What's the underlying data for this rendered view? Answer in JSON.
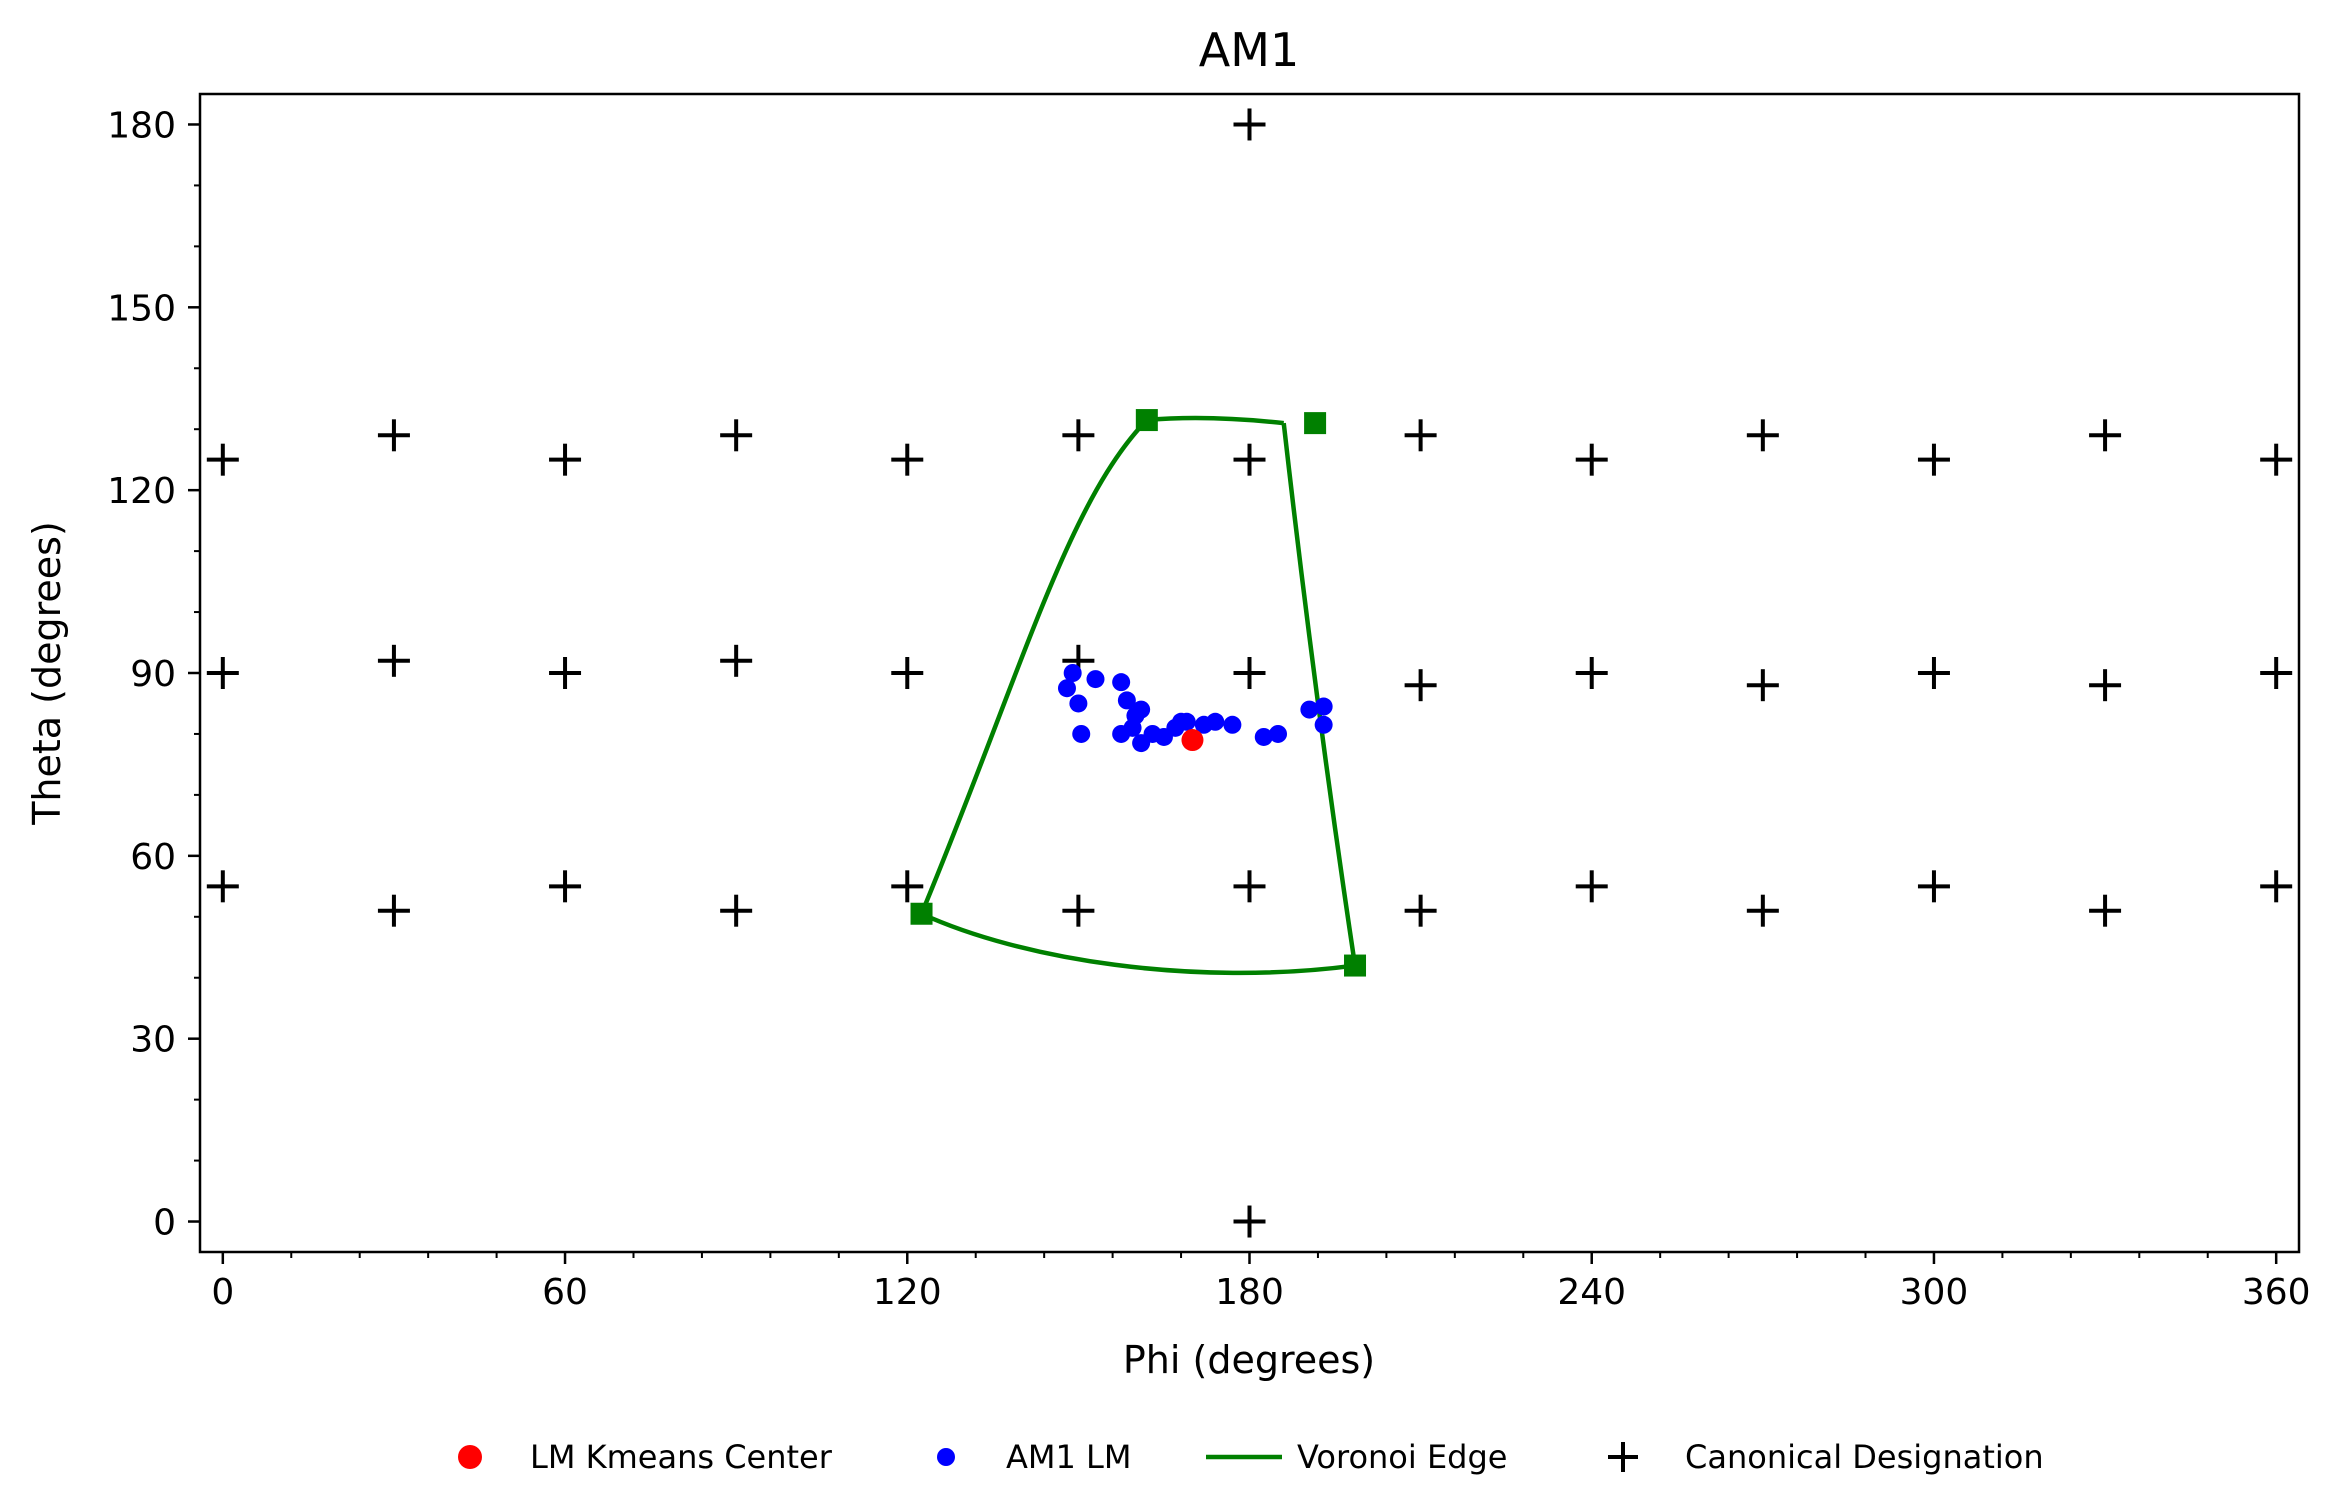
{
  "chart_data": {
    "type": "scatter",
    "title": "AM1",
    "xlabel": "Phi (degrees)",
    "ylabel": "Theta (degrees)",
    "xlim": [
      -4,
      364
    ],
    "ylim": [
      185,
      -5
    ],
    "y_inverted": true,
    "xticks": [
      0,
      60,
      120,
      180,
      240,
      300,
      360
    ],
    "yticks": [
      0,
      30,
      60,
      90,
      120,
      150,
      180
    ],
    "x_minor_step": 12,
    "y_minor_step": 10,
    "grid": false,
    "legend_position": "bottom-center",
    "legend": [
      {
        "label": "LM Kmeans Center",
        "marker": "circle",
        "color": "#ff0000"
      },
      {
        "label": "AM1 LM",
        "marker": "circle",
        "color": "#0000ff"
      },
      {
        "label": "Voronoi Edge",
        "marker": "line",
        "color": "#008000"
      },
      {
        "label": "Canonical Designation",
        "marker": "plus",
        "color": "#000000"
      }
    ],
    "series": [
      {
        "name": "Canonical Designation",
        "marker": "plus",
        "color": "#000000",
        "points": [
          [
            180,
            0
          ],
          [
            0,
            55
          ],
          [
            30,
            51
          ],
          [
            60,
            55
          ],
          [
            90,
            51
          ],
          [
            120,
            55
          ],
          [
            150,
            51
          ],
          [
            180,
            55
          ],
          [
            210,
            51
          ],
          [
            240,
            55
          ],
          [
            270,
            51
          ],
          [
            300,
            55
          ],
          [
            330,
            51
          ],
          [
            360,
            55
          ],
          [
            0,
            90
          ],
          [
            30,
            92
          ],
          [
            60,
            90
          ],
          [
            90,
            92
          ],
          [
            120,
            90
          ],
          [
            150,
            92
          ],
          [
            180,
            90
          ],
          [
            210,
            88
          ],
          [
            240,
            90
          ],
          [
            270,
            88
          ],
          [
            300,
            90
          ],
          [
            330,
            88
          ],
          [
            360,
            90
          ],
          [
            0,
            125
          ],
          [
            30,
            129
          ],
          [
            60,
            125
          ],
          [
            90,
            129
          ],
          [
            120,
            125
          ],
          [
            150,
            129
          ],
          [
            180,
            125
          ],
          [
            210,
            129
          ],
          [
            240,
            125
          ],
          [
            270,
            129
          ],
          [
            300,
            125
          ],
          [
            330,
            129
          ],
          [
            360,
            125
          ],
          [
            180,
            180
          ]
        ]
      },
      {
        "name": "Voronoi Edge",
        "marker": "square",
        "color": "#008000",
        "vertices": [
          [
            122.5,
            50.5
          ],
          [
            198.5,
            42
          ],
          [
            191.5,
            131
          ],
          [
            162,
            131.5
          ]
        ],
        "edges": [
          [
            [
              122.5,
              50.5
            ],
            [
              140,
              43
            ],
            [
              170,
              38.5
            ],
            [
              198.5,
              42
            ]
          ],
          [
            [
              198.5,
              42
            ],
            [
              194,
              70
            ],
            [
              190,
              98
            ],
            [
              186,
              131
            ]
          ],
          [
            [
              186,
              131
            ],
            [
              176,
              132
            ],
            [
              168,
              132
            ],
            [
              162,
              131.5
            ]
          ],
          [
            [
              162,
              131.5
            ],
            [
              148,
              118
            ],
            [
              140,
              90
            ],
            [
              122.5,
              50.5
            ]
          ]
        ]
      },
      {
        "name": "AM1 LM",
        "marker": "circle",
        "color": "#0000ff",
        "points": [
          [
            150.5,
            80
          ],
          [
            157.5,
            80
          ],
          [
            159.5,
            81
          ],
          [
            161,
            78.5
          ],
          [
            163,
            80
          ],
          [
            165,
            79.5
          ],
          [
            167,
            81
          ],
          [
            168,
            82
          ],
          [
            169,
            82
          ],
          [
            172,
            81.5
          ],
          [
            174,
            82
          ],
          [
            177,
            81.5
          ],
          [
            182.5,
            79.5
          ],
          [
            185,
            80
          ],
          [
            193,
            81.5
          ],
          [
            190.5,
            84
          ],
          [
            193,
            84.5
          ],
          [
            160,
            83
          ],
          [
            161,
            84
          ],
          [
            158.5,
            85.5
          ],
          [
            150,
            85
          ],
          [
            148,
            87.5
          ],
          [
            157.5,
            88.5
          ],
          [
            153,
            89
          ],
          [
            149,
            90
          ]
        ]
      },
      {
        "name": "LM Kmeans Center",
        "marker": "circle",
        "color": "#ff0000",
        "points": [
          [
            170,
            79
          ]
        ]
      }
    ]
  }
}
